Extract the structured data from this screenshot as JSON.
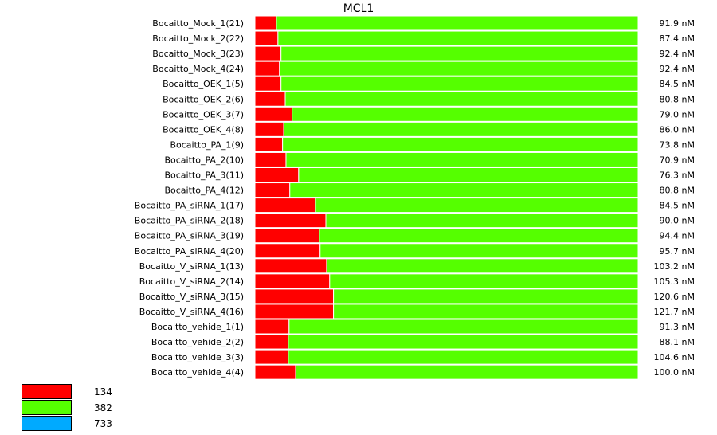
{
  "chart_data": {
    "type": "bar",
    "orientation": "horizontal",
    "stacked": true,
    "normalized": true,
    "title": "MCL1",
    "categories": [
      "Bocaitto_Mock_1(21)",
      "Bocaitto_Mock_2(22)",
      "Bocaitto_Mock_3(23)",
      "Bocaitto_Mock_4(24)",
      "Bocaitto_OEK_1(5)",
      "Bocaitto_OEK_2(6)",
      "Bocaitto_OEK_3(7)",
      "Bocaitto_OEK_4(8)",
      "Bocaitto_PA_1(9)",
      "Bocaitto_PA_2(10)",
      "Bocaitto_PA_3(11)",
      "Bocaitto_PA_4(12)",
      "Bocaitto_PA_siRNA_1(17)",
      "Bocaitto_PA_siRNA_2(18)",
      "Bocaitto_PA_siRNA_3(19)",
      "Bocaitto_PA_siRNA_4(20)",
      "Bocaitto_V_siRNA_1(13)",
      "Bocaitto_V_siRNA_2(14)",
      "Bocaitto_V_siRNA_3(15)",
      "Bocaitto_V_siRNA_4(16)",
      "Bocaitto_vehide_1(1)",
      "Bocaitto_vehide_2(2)",
      "Bocaitto_vehide_3(3)",
      "Bocaitto_vehide_4(4)"
    ],
    "value_labels": [
      "91.9 nM",
      "87.4 nM",
      "92.4 nM",
      "92.4 nM",
      "84.5 nM",
      "80.8 nM",
      "79.0 nM",
      "86.0 nM",
      "73.8 nM",
      "70.9 nM",
      "76.3 nM",
      "80.8 nM",
      "84.5 nM",
      "90.0 nM",
      "94.4 nM",
      "95.7 nM",
      "103.2 nM",
      "105.3 nM",
      "120.6 nM",
      "121.7 nM",
      "91.3 nM",
      "88.1 nM",
      "104.6 nM",
      "100.0 nM"
    ],
    "series": [
      {
        "color": "#ff0000",
        "values": [
          0.056,
          0.06,
          0.068,
          0.064,
          0.068,
          0.079,
          0.097,
          0.075,
          0.072,
          0.081,
          0.114,
          0.091,
          0.158,
          0.185,
          0.168,
          0.17,
          0.187,
          0.195,
          0.205,
          0.205,
          0.089,
          0.087,
          0.087,
          0.106
        ]
      },
      {
        "color": "#55ff00",
        "values": [
          0.944,
          0.94,
          0.932,
          0.936,
          0.932,
          0.921,
          0.903,
          0.925,
          0.928,
          0.919,
          0.886,
          0.909,
          0.842,
          0.815,
          0.832,
          0.83,
          0.813,
          0.805,
          0.795,
          0.795,
          0.911,
          0.913,
          0.913,
          0.894
        ]
      }
    ],
    "xlim": [
      0,
      1
    ],
    "legend": {
      "placement": "bottom-left",
      "entries": [
        {
          "label": "134",
          "color": "#ff0000"
        },
        {
          "label": "382",
          "color": "#55ff00"
        },
        {
          "label": "733",
          "color": "#00aaff"
        }
      ]
    }
  }
}
